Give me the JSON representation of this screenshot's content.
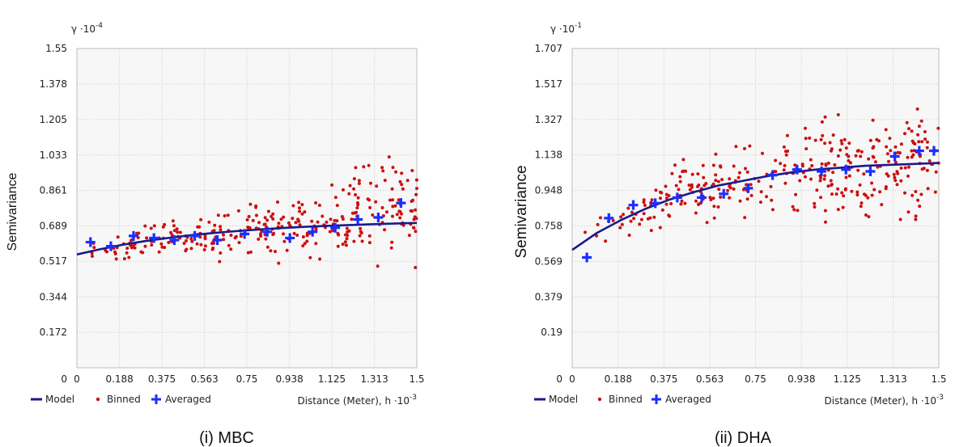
{
  "chart_data": [
    {
      "type": "scatter",
      "caption": "(i) MBC",
      "ylabel": "Semivariance",
      "y_unit": {
        "base": "γ ·10",
        "exp": "-4"
      },
      "x_unit": {
        "base": "Distance (Meter), h ·10",
        "exp": "-3"
      },
      "x_ticks": [
        "0",
        "0.188",
        "0.375",
        "0.563",
        "0.75",
        "0.938",
        "1.125",
        "1.313",
        "1.5"
      ],
      "y_ticks": [
        "0",
        "0.172",
        "0.344",
        "0.517",
        "0.689",
        "0.861",
        "1.033",
        "1.205",
        "1.378",
        "1.55"
      ],
      "xlim": [
        0,
        1.5
      ],
      "ylim": [
        0,
        1.55
      ],
      "grid": true,
      "legend": [
        "Model",
        "Binned",
        "Averaged"
      ],
      "legend_position": "bottom-left",
      "colors": {
        "model": "#1a1a8c",
        "binned": "#cc1111",
        "averaged": "#1a2fff"
      },
      "series": [
        {
          "name": "Averaged",
          "x": [
            0.06,
            0.15,
            0.25,
            0.34,
            0.43,
            0.52,
            0.62,
            0.74,
            0.84,
            0.94,
            1.04,
            1.14,
            1.24,
            1.33,
            1.43
          ],
          "y": [
            0.61,
            0.59,
            0.64,
            0.63,
            0.62,
            0.64,
            0.62,
            0.65,
            0.66,
            0.63,
            0.66,
            0.68,
            0.72,
            0.73,
            0.8
          ]
        },
        {
          "name": "Model",
          "x": [
            0,
            0.1,
            0.2,
            0.3,
            0.4,
            0.5,
            0.6,
            0.7,
            0.8,
            0.9,
            1.0,
            1.1,
            1.2,
            1.3,
            1.4,
            1.5
          ],
          "y": [
            0.55,
            0.575,
            0.597,
            0.615,
            0.63,
            0.643,
            0.654,
            0.663,
            0.671,
            0.678,
            0.684,
            0.689,
            0.693,
            0.697,
            0.7,
            0.703
          ]
        }
      ]
    },
    {
      "type": "scatter",
      "caption": "(ii) DHA",
      "ylabel": "Semivariance",
      "y_unit": {
        "base": "γ ·10",
        "exp": "-1"
      },
      "x_unit": {
        "base": "Distance (Meter), h ·10",
        "exp": "-3"
      },
      "x_ticks": [
        "0",
        "0.188",
        "0.375",
        "0.563",
        "0.75",
        "0.938",
        "1.125",
        "1.313",
        "1.5"
      ],
      "y_ticks": [
        "0",
        "0.19",
        "0.379",
        "0.569",
        "0.758",
        "0.948",
        "1.138",
        "1.327",
        "1.517",
        "1.707"
      ],
      "xlim": [
        0,
        1.5
      ],
      "ylim": [
        0,
        1.707
      ],
      "grid": true,
      "legend": [
        "Model",
        "Binned",
        "Averaged"
      ],
      "legend_position": "bottom-left",
      "colors": {
        "model": "#1a1a8c",
        "binned": "#cc1111",
        "averaged": "#1a2fff"
      },
      "series": [
        {
          "name": "Averaged",
          "x": [
            0.06,
            0.15,
            0.25,
            0.34,
            0.43,
            0.53,
            0.62,
            0.72,
            0.82,
            0.92,
            1.02,
            1.12,
            1.22,
            1.32,
            1.42,
            1.48
          ],
          "y": [
            0.59,
            0.8,
            0.87,
            0.88,
            0.91,
            0.91,
            0.93,
            0.96,
            1.03,
            1.06,
            1.05,
            1.06,
            1.05,
            1.13,
            1.16,
            1.16
          ]
        },
        {
          "name": "Model",
          "x": [
            0,
            0.1,
            0.2,
            0.3,
            0.4,
            0.5,
            0.6,
            0.7,
            0.8,
            0.9,
            1.0,
            1.1,
            1.2,
            1.3,
            1.4,
            1.5
          ],
          "y": [
            0.63,
            0.72,
            0.79,
            0.85,
            0.9,
            0.94,
            0.975,
            1.0,
            1.025,
            1.045,
            1.06,
            1.07,
            1.08,
            1.085,
            1.09,
            1.095
          ]
        }
      ]
    }
  ]
}
